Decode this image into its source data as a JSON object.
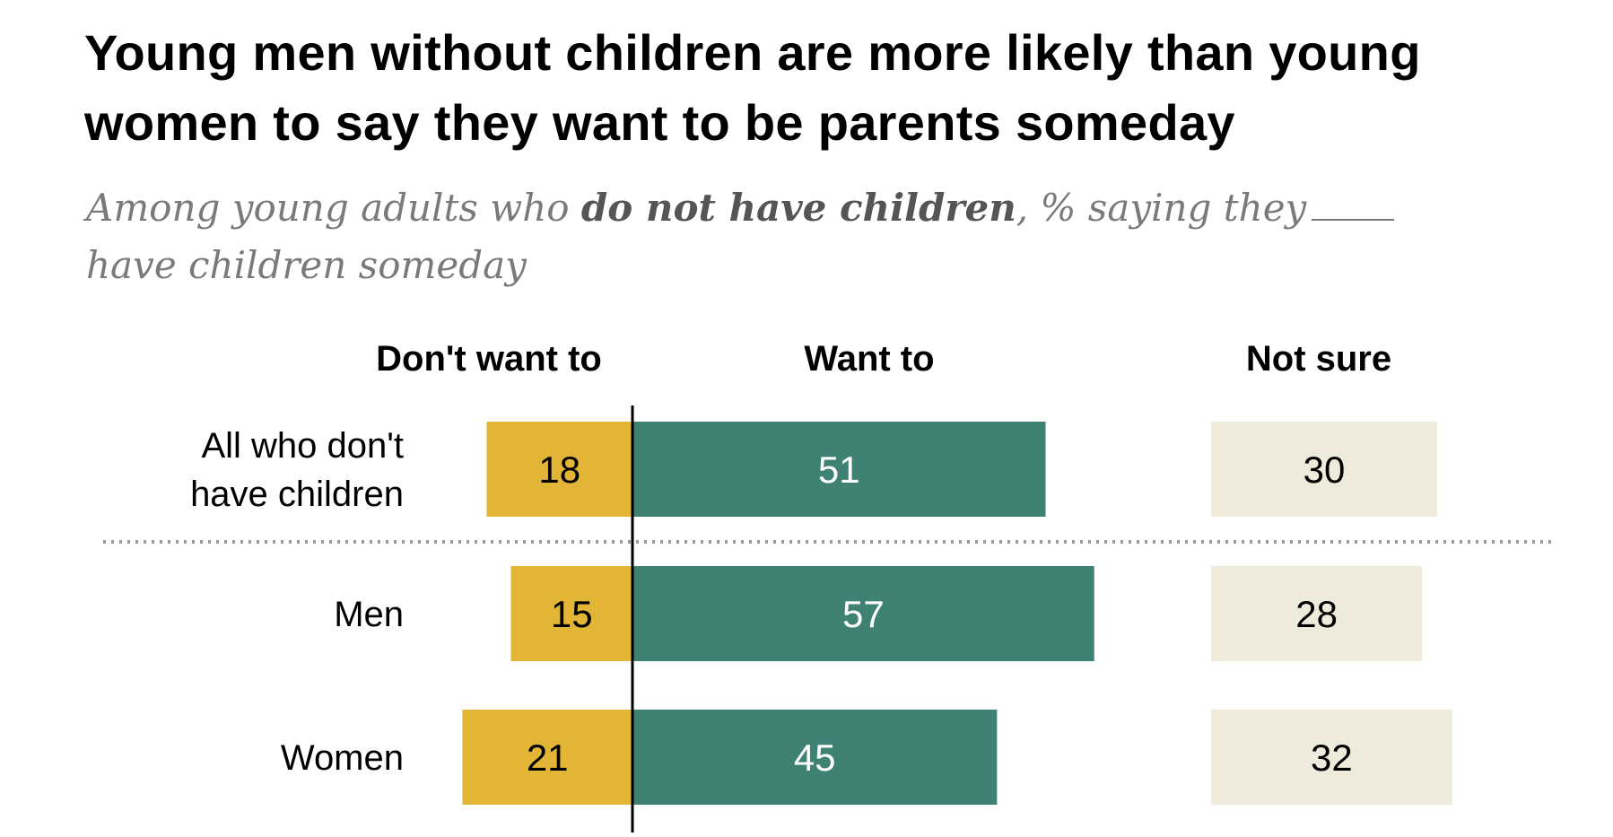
{
  "chart_data": {
    "type": "bar",
    "title": "Young men without children are more likely than young women to say they want to be parents someday",
    "subtitle": {
      "pre": "Among young adults who ",
      "bold": "do not have children",
      "post": ", % saying they",
      "line2": "have children someday"
    },
    "categories": [
      [
        "All who don't",
        "have children"
      ],
      [
        "Men"
      ],
      [
        "Women"
      ]
    ],
    "series": [
      {
        "name": "Don't want to",
        "values": [
          18,
          15,
          21
        ],
        "color": "#E2B536"
      },
      {
        "name": "Want to",
        "values": [
          51,
          57,
          45
        ],
        "color": "#3F8273"
      },
      {
        "name": "Not sure",
        "values": [
          30,
          28,
          32
        ],
        "color": "#EFEBDC"
      }
    ],
    "divider_after_first_row": true
  }
}
